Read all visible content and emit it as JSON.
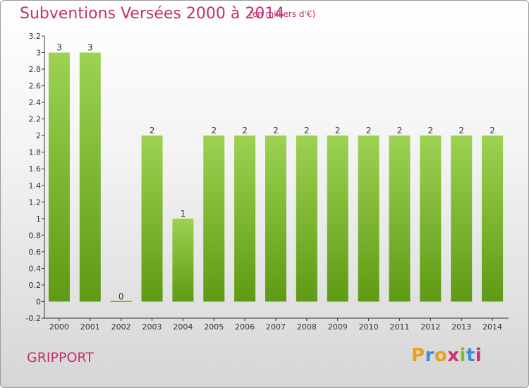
{
  "header": {
    "title": "Subventions Versées 2000 à 2014",
    "subtitle": "(en milliers d'€)"
  },
  "commune": "GRIPPORT",
  "logo": {
    "text": "Proxiti",
    "colors": [
      "#e8a020",
      "#3a8fd6",
      "#e8a020",
      "#d0306e",
      "#7cbd2e",
      "#3a8fd6",
      "#d0306e"
    ]
  },
  "colors": {
    "bar_top": "#9dd252",
    "bar_bottom": "#5e9a14",
    "title": "#c4306e",
    "axis": "#333333"
  },
  "chart_data": {
    "type": "bar",
    "categories": [
      "2000",
      "2001",
      "2002",
      "2003",
      "2004",
      "2005",
      "2006",
      "2007",
      "2008",
      "2009",
      "2010",
      "2011",
      "2012",
      "2013",
      "2014"
    ],
    "values": [
      3,
      3,
      0,
      2,
      1,
      2,
      2,
      2,
      2,
      2,
      2,
      2,
      2,
      2,
      2
    ],
    "data_labels": [
      "3",
      "3",
      "0",
      "2",
      "1",
      "2",
      "2",
      "2",
      "2",
      "2",
      "2",
      "2",
      "2",
      "2",
      "2"
    ],
    "yticks": [
      "-0.2",
      "0",
      "0.2",
      "0.4",
      "0.6",
      "0.8",
      "1",
      "1.2",
      "1.4",
      "1.6",
      "1.8",
      "2",
      "2.2",
      "2.4",
      "2.6",
      "2.8",
      "3",
      "3.2"
    ],
    "ylim": [
      -0.2,
      3.2
    ],
    "title": "Subventions Versées 2000 à 2014",
    "xlabel": "",
    "ylabel": "",
    "grid": false
  }
}
